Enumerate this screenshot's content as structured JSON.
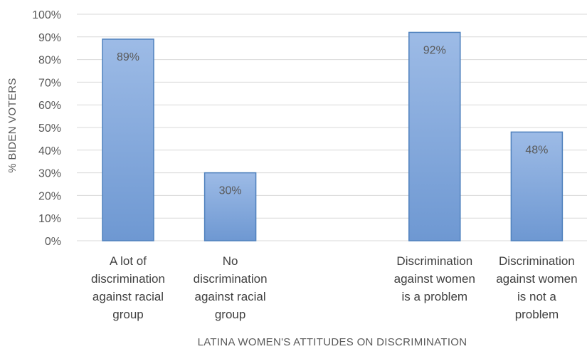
{
  "chart_data": {
    "type": "bar",
    "categories": [
      [
        "A lot of",
        "discrimination",
        "against racial",
        "group"
      ],
      [
        "No",
        "discrimination",
        "against racial",
        "group"
      ],
      [
        "Discrimination",
        "against women",
        "is a problem"
      ],
      [
        "Discrimination",
        "against women",
        "is not a",
        "problem"
      ]
    ],
    "values": [
      89,
      30,
      92,
      48
    ],
    "data_labels": [
      "89%",
      "30%",
      "92%",
      "48%"
    ],
    "slot_positions": [
      0,
      1,
      3,
      4
    ],
    "ylim": [
      0,
      100
    ],
    "ytick_labels": [
      "0%",
      "10%",
      "20%",
      "30%",
      "40%",
      "50%",
      "60%",
      "70%",
      "80%",
      "90%",
      "100%"
    ],
    "ylabel": "% BIDEN VOTERS",
    "xlabel": "LATINA WOMEN'S ATTITUDES ON DISCRIMINATION",
    "grid": true,
    "bar_color_top": "#9DBBE6",
    "bar_color_bottom": "#6E98D2",
    "bar_border_color": "#4F81BD",
    "gridline_color": "#D9D9D9"
  }
}
